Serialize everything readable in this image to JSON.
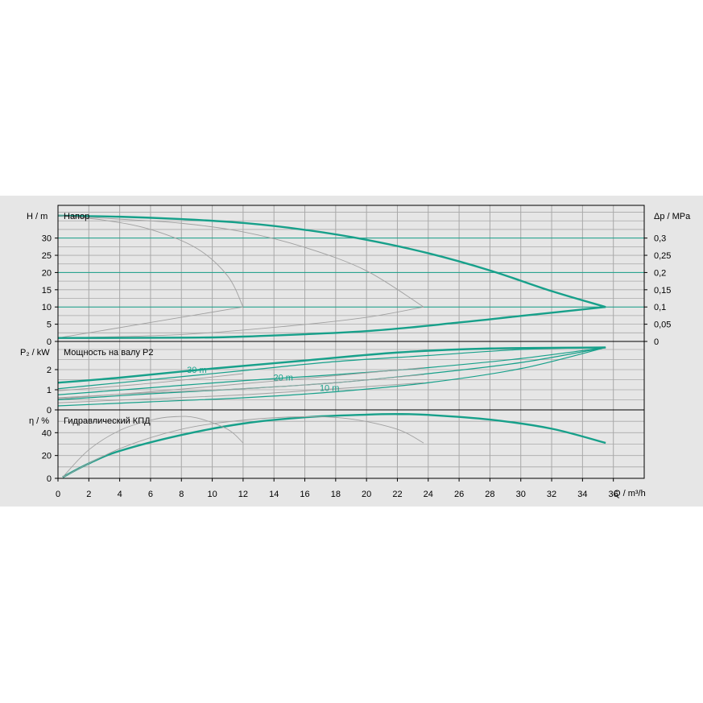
{
  "chart_data": {
    "type": "line",
    "colors": {
      "main": "#17a08a",
      "secondary": "#a0a0a0",
      "grid": "#a8a8a8",
      "panel_bg": "#e6e6e6"
    },
    "x": {
      "label": "Q / m³/h",
      "ticks": [
        0,
        2,
        4,
        6,
        8,
        10,
        12,
        14,
        16,
        18,
        20,
        22,
        24,
        26,
        28,
        30,
        32,
        34,
        36
      ],
      "range": [
        0,
        38
      ]
    },
    "panels": {
      "head": {
        "title": "Напор",
        "ylabel_left": "H / m",
        "ylabel_right": "Δp / MPa",
        "yticks": [
          0,
          5,
          10,
          15,
          20,
          25,
          30
        ],
        "yticks_right": [
          "0",
          "0,05",
          "0,1",
          "0,15",
          "0,2",
          "0,25",
          "0,3"
        ],
        "ylim": [
          0,
          39.5
        ],
        "hlines": [
          10,
          20,
          30
        ],
        "series": [
          {
            "points": [
              [
                0,
                36.5
              ],
              [
                4,
                36.2
              ],
              [
                8,
                35.5
              ],
              [
                12,
                34.4
              ],
              [
                16,
                32.4
              ],
              [
                20,
                29.5
              ],
              [
                24,
                25.6
              ],
              [
                28,
                20.6
              ],
              [
                32,
                14.6
              ],
              [
                35.5,
                10.0
              ]
            ]
          },
          {
            "points": [
              [
                0,
                36.5
              ],
              [
                3,
                35.2
              ],
              [
                6,
                32.5
              ],
              [
                9,
                27.0
              ],
              [
                11,
                19.0
              ],
              [
                12,
                10.0
              ]
            ]
          },
          {
            "points": [
              [
                0,
                36.5
              ],
              [
                4,
                35.5
              ],
              [
                8,
                34.3
              ],
              [
                12,
                31.8
              ],
              [
                16,
                27.3
              ],
              [
                20,
                20.5
              ],
              [
                23.7,
                10.0
              ]
            ]
          },
          {
            "points": [
              [
                0,
                1.0
              ],
              [
                12,
                10.0
              ]
            ]
          },
          {
            "points": [
              [
                0,
                1.0
              ],
              [
                8,
                2.0
              ],
              [
                15,
                4.5
              ],
              [
                20,
                7.0
              ],
              [
                23.7,
                10.0
              ]
            ]
          },
          {
            "points": [
              [
                0,
                1.0
              ],
              [
                8,
                1.1
              ],
              [
                12,
                1.4
              ],
              [
                20,
                3.0
              ],
              [
                26,
                5.5
              ],
              [
                30,
                7.4
              ],
              [
                35.5,
                10.0
              ]
            ]
          }
        ]
      },
      "power": {
        "title": "Мощность на валу P2",
        "ylabel_left": "P₂ / kW",
        "yticks": [
          0,
          1,
          2
        ],
        "ylim": [
          0,
          3.4
        ],
        "series": [
          {
            "points": [
              [
                0,
                1.35
              ],
              [
                4,
                1.6
              ],
              [
                10,
                2.05
              ],
              [
                16,
                2.45
              ],
              [
                22,
                2.85
              ],
              [
                28,
                3.05
              ],
              [
                35.5,
                3.1
              ]
            ]
          },
          {
            "points": [
              [
                0,
                1.05
              ],
              [
                6,
                1.5
              ],
              [
                12,
                1.95
              ],
              [
                18,
                2.4
              ],
              [
                24,
                2.7
              ],
              [
                30,
                3.0
              ],
              [
                35.5,
                3.1
              ]
            ]
          },
          {
            "points": [
              [
                0,
                0.75
              ],
              [
                6,
                1.1
              ],
              [
                12,
                1.45
              ],
              [
                18,
                1.75
              ],
              [
                24,
                2.1
              ],
              [
                30,
                2.55
              ],
              [
                35.5,
                3.1
              ]
            ]
          },
          {
            "points": [
              [
                0,
                0.5
              ],
              [
                6,
                0.8
              ],
              [
                12,
                1.05
              ],
              [
                18,
                1.35
              ],
              [
                24,
                1.8
              ],
              [
                30,
                2.35
              ],
              [
                35.5,
                3.1
              ]
            ]
          },
          {
            "points": [
              [
                0,
                0.2
              ],
              [
                6,
                0.4
              ],
              [
                12,
                0.6
              ],
              [
                18,
                0.9
              ],
              [
                24,
                1.35
              ],
              [
                30,
                2.05
              ],
              [
                35.5,
                3.1
              ]
            ]
          },
          {
            "points": [
              [
                0,
                0.95
              ],
              [
                5,
                1.25
              ],
              [
                9,
                1.55
              ],
              [
                12,
                1.8
              ]
            ]
          },
          {
            "points": [
              [
                0,
                0.55
              ],
              [
                6,
                0.9
              ],
              [
                12,
                1.3
              ],
              [
                18,
                1.7
              ],
              [
                23.7,
                2.1
              ]
            ]
          },
          {
            "points": [
              [
                0,
                0.6
              ],
              [
                6,
                0.85
              ],
              [
                12,
                1.05
              ],
              [
                18,
                1.35
              ],
              [
                23.7,
                1.75
              ]
            ]
          },
          {
            "points": [
              [
                0,
                0.35
              ],
              [
                6,
                0.55
              ],
              [
                12,
                0.75
              ],
              [
                18,
                1.05
              ],
              [
                23.7,
                1.35
              ]
            ]
          }
        ],
        "labels": [
          {
            "text": "30 m",
            "x": 9.0,
            "y": 2.0
          },
          {
            "text": "20 m",
            "x": 14.6,
            "y": 1.63
          },
          {
            "text": "10 m",
            "x": 17.6,
            "y": 1.1
          }
        ]
      },
      "efficiency": {
        "title": "Гидравлический КПД",
        "ylabel_left": "η / %",
        "yticks": [
          0,
          20,
          40
        ],
        "ylim": [
          0,
          60
        ],
        "series": [
          {
            "points": [
              [
                0.3,
                1.0
              ],
              [
                2,
                13
              ],
              [
                4,
                24
              ],
              [
                8,
                38
              ],
              [
                12,
                48
              ],
              [
                16,
                53.5
              ],
              [
                20,
                55.8
              ],
              [
                22,
                56.3
              ],
              [
                24,
                55.6
              ],
              [
                28,
                51.5
              ],
              [
                32,
                43.5
              ],
              [
                35.5,
                31
              ]
            ]
          },
          {
            "points": [
              [
                0.3,
                1.0
              ],
              [
                2,
                25
              ],
              [
                4,
                42
              ],
              [
                6,
                51
              ],
              [
                7.5,
                54
              ],
              [
                9,
                53
              ],
              [
                11,
                43
              ],
              [
                12,
                31
              ]
            ]
          },
          {
            "points": [
              [
                0.3,
                1.0
              ],
              [
                4,
                26
              ],
              [
                8,
                43
              ],
              [
                12,
                51
              ],
              [
                16,
                54
              ],
              [
                19,
                52
              ],
              [
                22,
                43
              ],
              [
                23.7,
                31
              ]
            ]
          }
        ]
      }
    }
  }
}
